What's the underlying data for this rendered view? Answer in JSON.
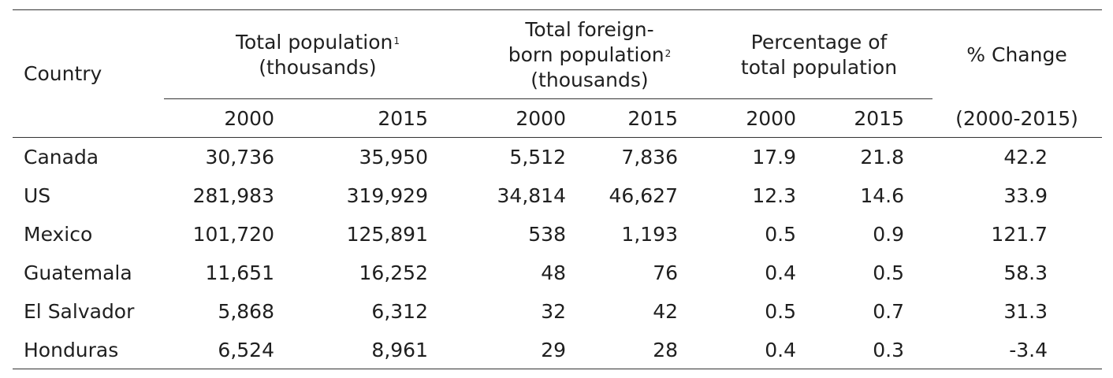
{
  "headers": {
    "country": "Country",
    "total_population": {
      "line1": "Total population",
      "sup": "1",
      "line2": "(thousands)"
    },
    "foreign_born": {
      "line1": "Total foreign-",
      "line2a": "born population",
      "sup": "2",
      "line3": "(thousands)"
    },
    "percentage": {
      "line1": "Percentage of",
      "line2": "total population"
    },
    "change": {
      "line1": "% Change",
      "line2": "(2000-2015)"
    },
    "years": [
      "2000",
      "2015",
      "2000",
      "2015",
      "2000",
      "2015"
    ]
  },
  "rows": [
    {
      "country": "Canada",
      "values": [
        "30,736",
        "35,950",
        "5,512",
        "7,836",
        "17.9",
        "21.8",
        "42.2"
      ]
    },
    {
      "country": "US",
      "values": [
        "281,983",
        "319,929",
        "34,814",
        "46,627",
        "12.3",
        "14.6",
        "33.9"
      ]
    },
    {
      "country": "Mexico",
      "values": [
        "101,720",
        "125,891",
        "538",
        "1,193",
        "0.5",
        "0.9",
        "121.7"
      ]
    },
    {
      "country": "Guatemala",
      "values": [
        "11,651",
        "16,252",
        "48",
        "76",
        "0.4",
        "0.5",
        "58.3"
      ]
    },
    {
      "country": "El Salvador",
      "values": [
        "5,868",
        "6,312",
        "32",
        "42",
        "0.5",
        "0.7",
        "31.3"
      ]
    },
    {
      "country": "Honduras",
      "values": [
        "6,524",
        "8,961",
        "29",
        "28",
        "0.4",
        "0.3",
        "-3.4"
      ]
    }
  ]
}
